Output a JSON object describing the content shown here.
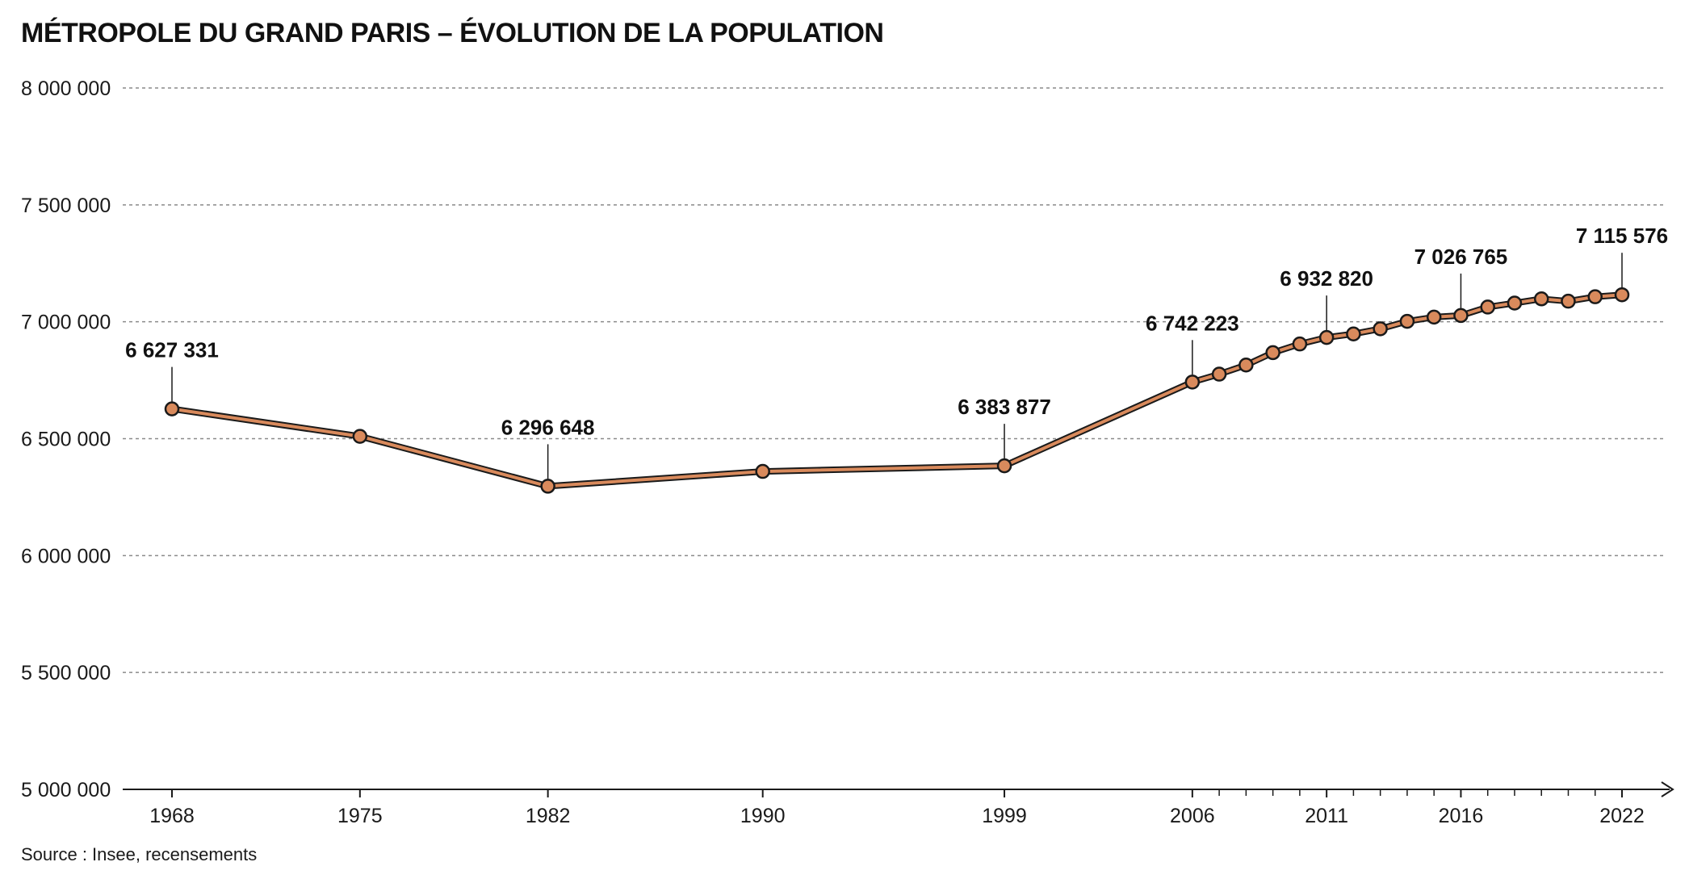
{
  "chart_data": {
    "type": "line",
    "title": "MÉTROPOLE DU GRAND PARIS – ÉVOLUTION DE LA POPULATION",
    "source": "Source : Insee, recensements",
    "xlabel": "",
    "ylabel": "",
    "ylim": [
      5000000,
      8000000
    ],
    "yticks": [
      5000000,
      5500000,
      6000000,
      6500000,
      7000000,
      7500000,
      8000000
    ],
    "ytick_labels": [
      "5 000 000",
      "5 500 000",
      "6 000 000",
      "6 500 000",
      "7 000 000",
      "7 500 000",
      "8 000 000"
    ],
    "xlim": [
      1966,
      2023
    ],
    "xticks_labeled": [
      1968,
      1975,
      1982,
      1990,
      1999,
      2006,
      2011,
      2016,
      2022
    ],
    "xticks_minor": [
      2007,
      2008,
      2009,
      2010,
      2012,
      2013,
      2014,
      2015,
      2017,
      2018,
      2019,
      2020,
      2021
    ],
    "grid": true,
    "line_color": "#d98a5c",
    "outline_color": "#1a1a1a",
    "series": [
      {
        "x": [
          1968,
          1975,
          1982,
          1990,
          1999,
          2006,
          2007,
          2008,
          2009,
          2010,
          2011,
          2012,
          2013,
          2014,
          2015,
          2016,
          2017,
          2018,
          2019,
          2020,
          2021,
          2022
        ],
        "values": [
          6627331,
          6510000,
          6296648,
          6360000,
          6383877,
          6742223,
          6776000,
          6815000,
          6868000,
          6905000,
          6932820,
          6948000,
          6970000,
          7002000,
          7020000,
          7026765,
          7063000,
          7080000,
          7098000,
          7088000,
          7107000,
          7115576
        ]
      }
    ],
    "annotations": [
      {
        "x": 1968,
        "y": 6627331,
        "label": "6 627 331"
      },
      {
        "x": 1982,
        "y": 6296648,
        "label": "6 296 648"
      },
      {
        "x": 1999,
        "y": 6383877,
        "label": "6 383 877"
      },
      {
        "x": 2006,
        "y": 6742223,
        "label": "6 742 223"
      },
      {
        "x": 2011,
        "y": 6932820,
        "label": "6 932 820"
      },
      {
        "x": 2016,
        "y": 7026765,
        "label": "7 026 765"
      },
      {
        "x": 2022,
        "y": 7115576,
        "label": "7 115 576"
      }
    ]
  }
}
